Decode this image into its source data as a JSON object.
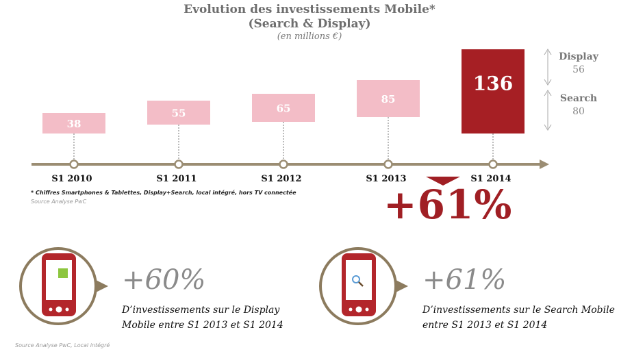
{
  "title_line1": "Evolution des investissements Mobile*",
  "title_line2": "(Search & Display)",
  "unit": "(en millions €)",
  "chart_data": {
    "type": "bar",
    "categories": [
      "S1 2010",
      "S1 2011",
      "S1 2012",
      "S1 2013",
      "S1 2014"
    ],
    "values": [
      38,
      55,
      65,
      85,
      136
    ],
    "value_labels": [
      "38",
      "55",
      "65",
      "85",
      "136"
    ],
    "highlight_index": 4,
    "breakdown": [
      {
        "name": "Display",
        "value": 56,
        "value_label": "56"
      },
      {
        "name": "Search",
        "value": 80,
        "value_label": "80"
      }
    ],
    "colors": {
      "bar": "#f3bdc7",
      "highlight": "#a61f24",
      "axis": "#9b8d73"
    }
  },
  "footnote": "* Chiffres Smartphones & Tablettes, Display+Search, local intégré,  hors TV connectée",
  "source_top": "Source Analyse PwC",
  "growth_total": "+61%",
  "kpis": [
    {
      "value": "+60%",
      "desc_line1": "D’investissements sur le Display",
      "desc_line2": "Mobile entre S1 2013 et S1 2014",
      "icon": "phone-display-icon"
    },
    {
      "value": "+61%",
      "desc_line1": "D’investissements sur le Search Mobile",
      "desc_line2": "entre S1 2013 et S1 2014",
      "icon": "phone-search-icon"
    }
  ],
  "source_bottom": "Source Analyse PwC, Local intégré"
}
